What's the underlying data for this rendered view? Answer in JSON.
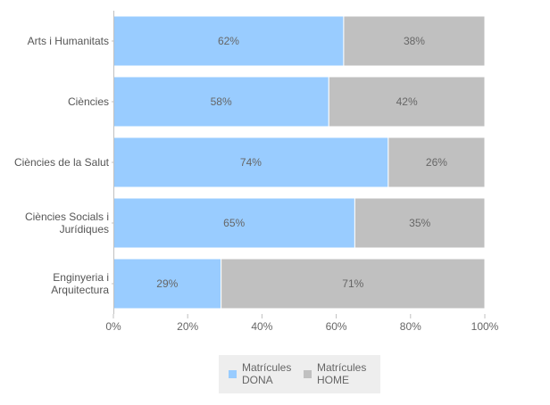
{
  "chart_data": {
    "type": "bar",
    "orientation": "horizontal",
    "stacked": "percent",
    "categories": [
      [
        "Arts i Humanitats"
      ],
      [
        "Ciències"
      ],
      [
        "Ciències de la Salut"
      ],
      [
        "Ciències Socials i",
        "Jurídiques"
      ],
      [
        "Enginyeria i",
        "Arquitectura"
      ]
    ],
    "series": [
      {
        "name": [
          "Matrícules",
          "DONA"
        ],
        "color": "#99ccff",
        "values": [
          62,
          58,
          74,
          65,
          29
        ]
      },
      {
        "name": [
          "Matrícules",
          "HOME"
        ],
        "color": "#c0c0c0",
        "values": [
          38,
          42,
          26,
          35,
          71
        ]
      }
    ],
    "value_suffix": "%",
    "xlim": [
      0,
      100
    ],
    "xticks": [
      0,
      20,
      40,
      60,
      80,
      100
    ],
    "xtick_labels": [
      "0%",
      "20%",
      "40%",
      "60%",
      "80%",
      "100%"
    ],
    "grid": false,
    "legend_position": "bottom-center",
    "legend_background": "#eeeeee"
  }
}
